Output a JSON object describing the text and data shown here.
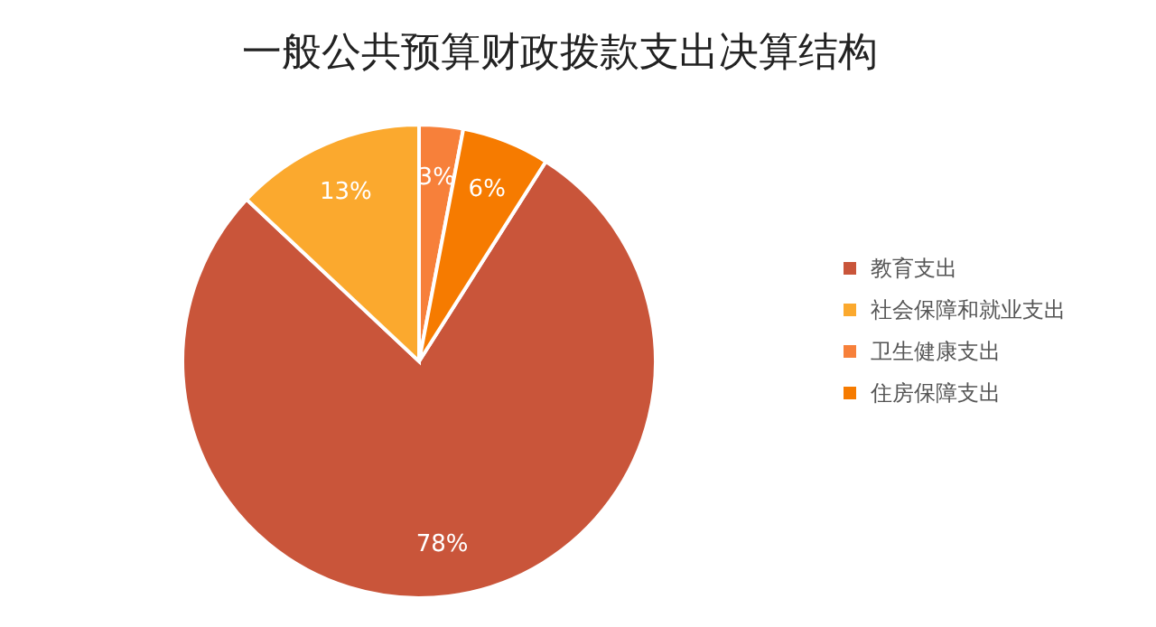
{
  "chart_data": {
    "type": "pie",
    "title": "一般公共预算财政拨款支出决算结构",
    "categories": [
      "教育支出",
      "社会保障和就业支出",
      "卫生健康支出",
      "住房保障支出"
    ],
    "values": [
      78,
      13,
      3,
      6
    ],
    "colors": [
      "#c9553a",
      "#fba92e",
      "#f7803a",
      "#f67b00"
    ],
    "value_labels": [
      "78%",
      "13%",
      "3%",
      "6%"
    ],
    "legend": "right"
  }
}
